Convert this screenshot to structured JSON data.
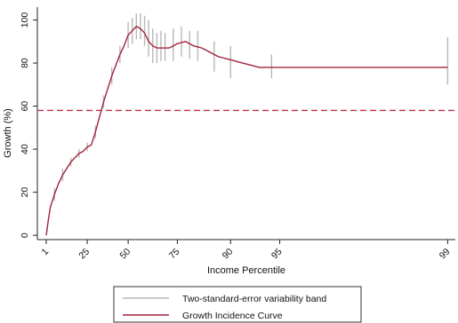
{
  "chart_data": {
    "type": "line",
    "xlabel": "Income Percentile",
    "ylabel": "Growth (%)",
    "xlim": [
      1,
      100
    ],
    "ylim": [
      -2,
      106
    ],
    "y_ticks": [
      0,
      20,
      40,
      60,
      80,
      100
    ],
    "x_ticks": [
      1,
      25,
      50,
      75,
      90,
      95,
      99
    ],
    "x_tick_labels": [
      "1",
      "25",
      "50",
      "75",
      "90",
      "95",
      "99"
    ],
    "x_tick_positions": [
      1,
      11,
      21,
      33,
      46,
      58,
      99
    ],
    "grid": false,
    "legend_position": "bottom",
    "reference_line": {
      "y": 58,
      "style": "dashed",
      "color": "#c0304a"
    },
    "series": [
      {
        "name": "Growth Incidence Curve",
        "color": "#a3223a",
        "x": [
          1,
          1.5,
          2,
          3,
          4,
          5,
          6,
          7,
          8,
          9,
          10,
          11,
          12,
          13,
          14,
          15,
          16,
          17,
          18,
          19,
          20,
          21,
          22,
          23,
          24,
          25,
          26,
          27,
          28,
          29,
          30,
          31,
          32,
          33,
          34,
          35,
          36,
          37,
          38,
          39,
          40,
          41,
          42,
          43,
          44,
          45,
          46,
          47,
          48,
          50,
          53,
          56,
          62,
          70,
          99
        ],
        "y": [
          0,
          7,
          13,
          19,
          24,
          28,
          31,
          34,
          36,
          38,
          39,
          41,
          42,
          48,
          55,
          62,
          68,
          74,
          79,
          84,
          88,
          93,
          95,
          97,
          96,
          94,
          90,
          88,
          87,
          87,
          87,
          87,
          88,
          89,
          89.5,
          90,
          89,
          88,
          87.5,
          87,
          86,
          85,
          84,
          83,
          82.5,
          82,
          81.5,
          81,
          80.5,
          79.5,
          78,
          78,
          78,
          78,
          78
        ]
      },
      {
        "name": "Two-standard-error variability band",
        "color": "#b8b8b8",
        "x": [
          3,
          5,
          7,
          9,
          11,
          13,
          15,
          17,
          19,
          21,
          22,
          23,
          24,
          25,
          26,
          27,
          28,
          29,
          30,
          32,
          34,
          36,
          38,
          42,
          46,
          56,
          99
        ],
        "low": [
          16,
          25,
          32,
          36,
          39,
          45,
          59,
          70,
          80,
          87,
          89,
          91,
          91,
          88,
          83,
          80,
          80,
          81,
          81,
          81,
          83,
          82,
          81,
          76,
          73,
          73,
          70
        ],
        "high": [
          22,
          31,
          36,
          40,
          43,
          51,
          65,
          78,
          88,
          99,
          101,
          103,
          103,
          102,
          100,
          96,
          94,
          95,
          94,
          96,
          97,
          95,
          95,
          90,
          88,
          84,
          92
        ]
      }
    ]
  },
  "legend": {
    "band_label": "Two-standard-error variability band",
    "curve_label": "Growth Incidence Curve"
  }
}
